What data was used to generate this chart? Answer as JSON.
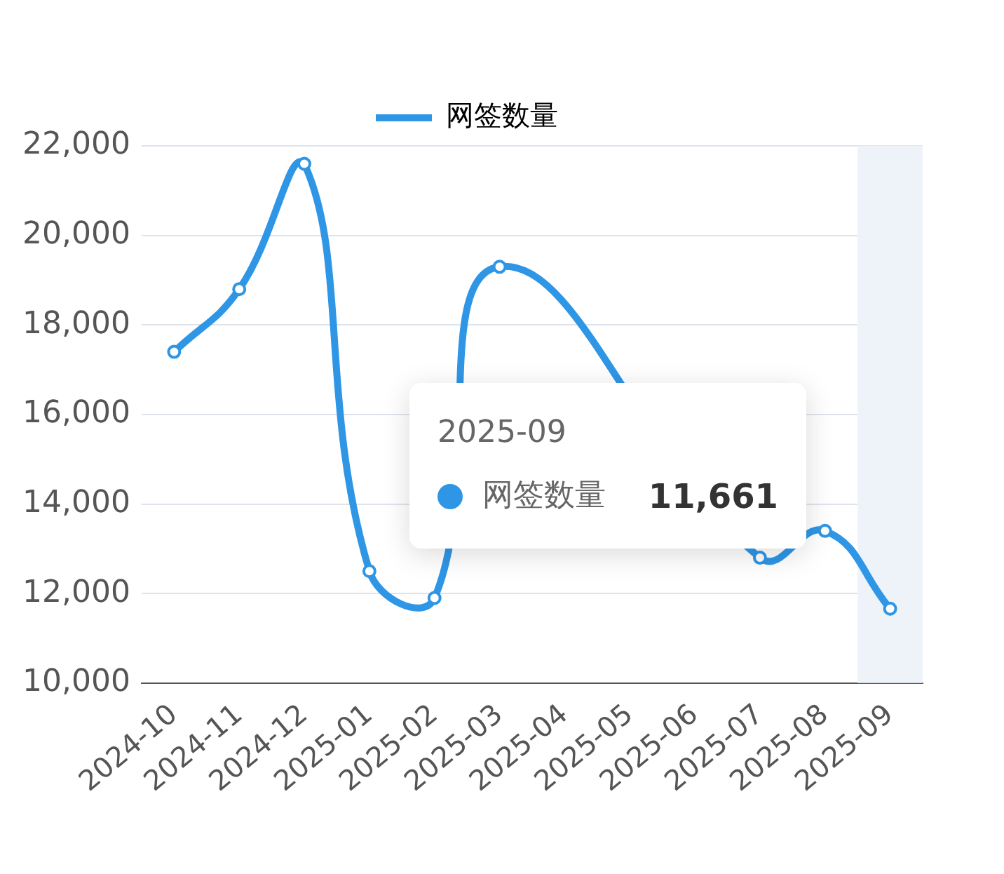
{
  "chart_data": {
    "type": "line",
    "categories": [
      "2024-10",
      "2024-11",
      "2024-12",
      "2025-01",
      "2025-02",
      "2025-03",
      "2025-04",
      "2025-05",
      "2025-06",
      "2025-07",
      "2025-08",
      "2025-09"
    ],
    "series": [
      {
        "name": "网签数量",
        "color": "#2f96e6",
        "values": [
          17400,
          18800,
          21600,
          12500,
          11900,
          19300,
          null,
          null,
          null,
          12800,
          13400,
          11661
        ]
      }
    ],
    "ylim": [
      10000,
      22000
    ],
    "yticks": [
      {
        "value": 10000,
        "label": "10,000"
      },
      {
        "value": 12000,
        "label": "12,000"
      },
      {
        "value": 14000,
        "label": "14,000"
      },
      {
        "value": 16000,
        "label": "16,000"
      },
      {
        "value": 18000,
        "label": "18,000"
      },
      {
        "value": 20000,
        "label": "20,000"
      },
      {
        "value": 22000,
        "label": "22,000"
      }
    ],
    "grid": "y",
    "legend": "top",
    "marker": "circle",
    "line_style": "solid",
    "bands": [
      {
        "axis": "x",
        "from": "2025-09",
        "to": "2025-09",
        "color": "#eef3fa"
      }
    ],
    "annotations": [
      "2025-09",
      "网签数量",
      "11,661"
    ]
  }
}
